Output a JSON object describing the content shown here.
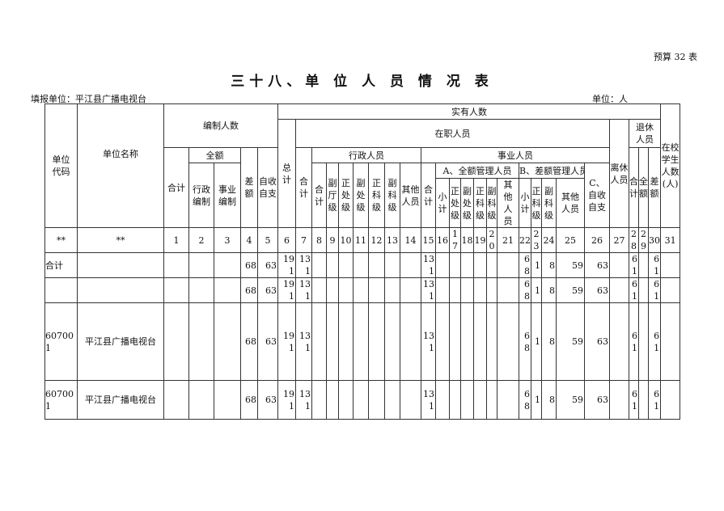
{
  "form_no": "预算 32 表",
  "title": "三十八、单 位 人 员 情 况 表",
  "filler": "填报单位：平江县广播电视台",
  "unit": "单位：人",
  "headers": {
    "code": "单位代码",
    "name": "单位名称",
    "staffing": "编制人数",
    "actual": "实有人数",
    "students": "在校学生人数(人)",
    "total": "总计",
    "onjob": "在职人员",
    "retired_lx": "离休人员",
    "retired_tx": "退休人员",
    "s_total": "合计",
    "s_full": "全额",
    "s_diff": "差额",
    "s_self": "自收自支",
    "o_total": "合计",
    "admin": "行政人员",
    "inst": "事业人员",
    "t_total": "合计",
    "t_full": "全额",
    "t_diff": "差额",
    "s_admin": "行政编制",
    "s_inst": "事业编制",
    "a_total": "合计",
    "a_ft": "副厅级",
    "a_zc": "正处级",
    "a_fc": "副处级",
    "a_zk": "正科级",
    "a_fk": "副科级",
    "a_other": "其他人员",
    "i_total": "合计",
    "i_a": "A、全额管理人员",
    "i_b": "B、差额管理人员",
    "i_c": "C、自收自支",
    "ia_sub": "小计",
    "ia_zc": "正处级",
    "ia_fc": "副处级",
    "ia_zk": "正科级",
    "ia_fk": "副科级",
    "ia_other": "其他人员",
    "ib_sub": "小计",
    "ib_zk": "正科级",
    "ib_fk": "副科级",
    "ib_other": "其他人员"
  },
  "number_row": [
    "**",
    "**",
    "1",
    "2",
    "3",
    "4",
    "5",
    "6",
    "7",
    "8",
    "9",
    "10",
    "11",
    "12",
    "13",
    "14",
    "15",
    "16",
    "17",
    "18",
    "19",
    "20",
    "21",
    "22",
    "23",
    "24",
    "25",
    "26",
    "27",
    "28",
    "29",
    "30",
    "31"
  ],
  "rows": [
    [
      "合计",
      "",
      "",
      "",
      "",
      "68",
      "63",
      "191",
      "131",
      "",
      "",
      "",
      "",
      "",
      "",
      "",
      "131",
      "",
      "",
      "",
      "",
      "",
      "",
      "68",
      "1",
      "8",
      "59",
      "63",
      "",
      "61",
      "",
      "61",
      ""
    ],
    [
      "",
      "",
      "",
      "",
      "",
      "68",
      "63",
      "191",
      "131",
      "",
      "",
      "",
      "",
      "",
      "",
      "",
      "131",
      "",
      "",
      "",
      "",
      "",
      "",
      "68",
      "1",
      "8",
      "59",
      "63",
      "",
      "61",
      "",
      "61",
      ""
    ],
    [
      "607001",
      "平江县广播电视台",
      "",
      "",
      "",
      "68",
      "63",
      "191",
      "131",
      "",
      "",
      "",
      "",
      "",
      "",
      "",
      "131",
      "",
      "",
      "",
      "",
      "",
      "",
      "68",
      "1",
      "8",
      "59",
      "63",
      "",
      "61",
      "",
      "61",
      ""
    ],
    [
      "607001",
      "平江县广播电视台",
      "",
      "",
      "",
      "68",
      "63",
      "191",
      "131",
      "",
      "",
      "",
      "",
      "",
      "",
      "",
      "131",
      "",
      "",
      "",
      "",
      "",
      "",
      "68",
      "1",
      "8",
      "59",
      "63",
      "",
      "61",
      "",
      "61",
      ""
    ]
  ]
}
